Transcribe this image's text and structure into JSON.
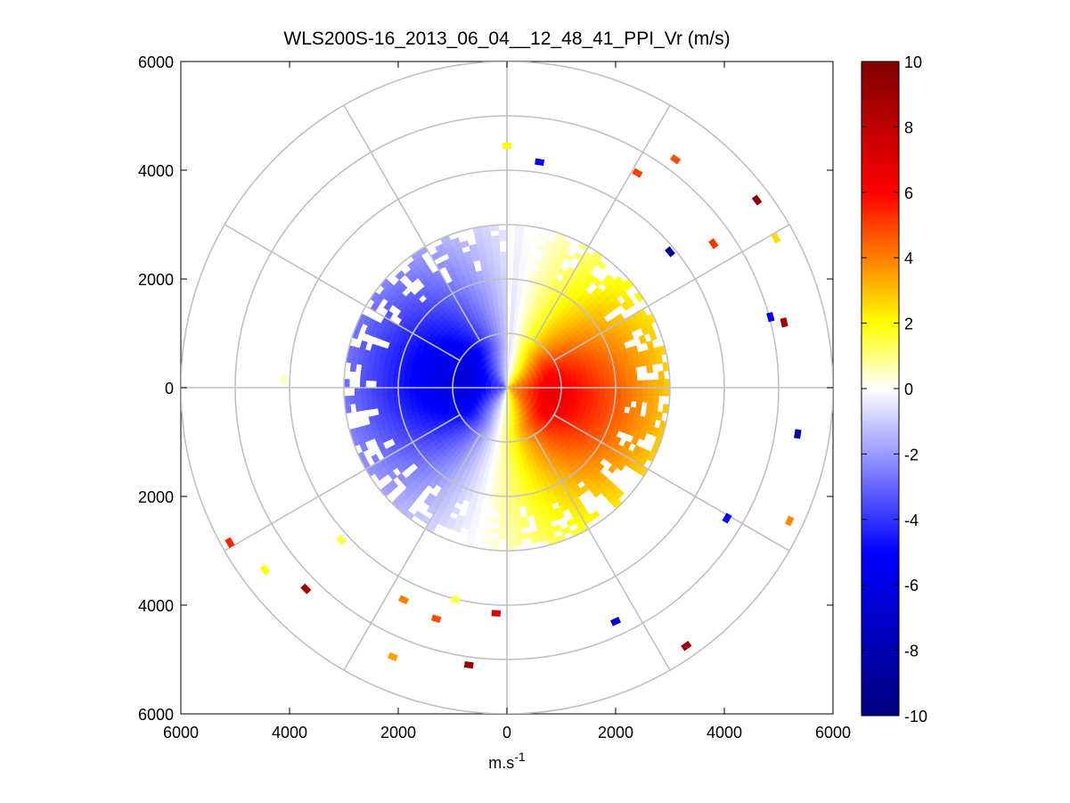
{
  "chart_data": {
    "type": "heatmap",
    "subtype": "polar-ppi",
    "title": "WLS200S-16_2013_06_04__12_48_41_PPI_Vr (m/s)",
    "xlabel": "m.s",
    "xlabel_superscript": "-1",
    "ylabel": "",
    "xlim": [
      -6000,
      6000
    ],
    "ylim": [
      -6000,
      6000
    ],
    "x_tick_labels": [
      "6000",
      "4000",
      "2000",
      "0",
      "2000",
      "4000",
      "6000"
    ],
    "y_tick_labels": [
      "6000",
      "4000",
      "2000",
      "0",
      "2000",
      "4000",
      "6000"
    ],
    "polar_grid": {
      "rings": [
        1000,
        2000,
        3000,
        4000,
        5000,
        6000
      ],
      "spoke_angles_deg": [
        0,
        30,
        60,
        90,
        120,
        150,
        180,
        210,
        240,
        270,
        300,
        330
      ]
    },
    "colorbar": {
      "min": -10,
      "max": 10,
      "tick_labels": [
        "10",
        "8",
        "6",
        "4",
        "2",
        "0",
        "-2",
        "-4",
        "-6",
        "-8",
        "-10"
      ],
      "colors": [
        "#00007f",
        "#0000ff",
        "#ffffff",
        "#ffff00",
        "#ff0000",
        "#7f0000"
      ]
    },
    "field": {
      "description_note": "radial velocity field; negative (toward) to the west/north-west, positive (away) to the east/south-east",
      "core_range_m": 3000,
      "positive_peak_m_s": 7,
      "positive_peak_azimuth_deg": 100,
      "positive_peak_range_m": 800,
      "negative_peak_m_s": -6.5,
      "negative_peak_azimuth_deg": 280,
      "negative_peak_range_m": 900,
      "zero_line_azimuths_deg": [
        2,
        210
      ]
    },
    "isolated_returns": [
      {
        "x": 3100,
        "y": 4200,
        "v": 4.8
      },
      {
        "x": 2400,
        "y": 3950,
        "v": 5.0
      },
      {
        "x": 3800,
        "y": 2650,
        "v": 5.2
      },
      {
        "x": 3000,
        "y": 2500,
        "v": -9.0
      },
      {
        "x": 4950,
        "y": 2750,
        "v": 2.5
      },
      {
        "x": 4850,
        "y": 1300,
        "v": -5.0
      },
      {
        "x": 5350,
        "y": -850,
        "v": -8.5
      },
      {
        "x": 4050,
        "y": -2400,
        "v": -5.5
      },
      {
        "x": 5200,
        "y": -2450,
        "v": 3.8
      },
      {
        "x": 3300,
        "y": -4750,
        "v": 9.0
      },
      {
        "x": 2000,
        "y": -4300,
        "v": -6.5
      },
      {
        "x": 4600,
        "y": 3450,
        "v": 9.5
      },
      {
        "x": 5100,
        "y": 1200,
        "v": 9.0
      },
      {
        "x": -5100,
        "y": -2850,
        "v": 5.5
      },
      {
        "x": -4450,
        "y": -3350,
        "v": 2.0
      },
      {
        "x": -3700,
        "y": -3700,
        "v": 9.0
      },
      {
        "x": -700,
        "y": -5100,
        "v": 9.2
      },
      {
        "x": -2100,
        "y": -4950,
        "v": 3.5
      },
      {
        "x": -1300,
        "y": -4250,
        "v": 4.8
      },
      {
        "x": -200,
        "y": -4150,
        "v": 7.0
      },
      {
        "x": -950,
        "y": -3900,
        "v": 1.5
      },
      {
        "x": 0,
        "y": 4450,
        "v": 2.0
      },
      {
        "x": 600,
        "y": 4150,
        "v": -5.5
      },
      {
        "x": -4100,
        "y": 150,
        "v": 0.5
      },
      {
        "x": -3050,
        "y": -2800,
        "v": 1.5
      },
      {
        "x": -1900,
        "y": -3900,
        "v": 4.0
      }
    ]
  }
}
